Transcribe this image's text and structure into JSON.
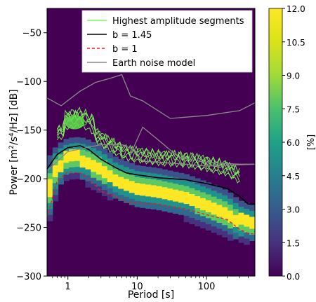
{
  "chart_data": {
    "type": "heatmap",
    "xlabel": "Period [s]",
    "xscale": "log",
    "xlim": [
      0.5,
      500
    ],
    "x_ticks": [
      {
        "value": 1,
        "label": "1"
      },
      {
        "value": 10,
        "label": "10"
      },
      {
        "value": 100,
        "label": "100"
      }
    ],
    "ylabel_parts": {
      "pre": "Power [m",
      "sup1": "2",
      "mid": "/s",
      "sup2": "4",
      "post": "/Hz] [dB]"
    },
    "ylim": [
      -300,
      -25
    ],
    "y_ticks": [
      -50,
      -100,
      -150,
      -200,
      -250,
      -300
    ],
    "y_tick_labels": [
      "−50",
      "−100",
      "−150",
      "−200",
      "−250",
      "−300"
    ],
    "colorbar": {
      "label": "[%]",
      "range": [
        0,
        12
      ],
      "ticks": [
        "0.0",
        "1.5",
        "3.0",
        "4.5",
        "6.0",
        "7.5",
        "9.0",
        "10.5",
        "12.0"
      ],
      "colormap": "viridis"
    },
    "legend": {
      "position": "top-right",
      "entries": [
        {
          "label": "Highest amplitude segments",
          "color": "#7cfc5a",
          "style": "solid"
        },
        {
          "label": "b = 1.45",
          "color": "#000000",
          "style": "solid"
        },
        {
          "label": "b = 1",
          "color": "#e8201c",
          "style": "dashed"
        },
        {
          "label": "Earth noise model",
          "color": "#888888",
          "style": "solid"
        }
      ]
    },
    "density_band": {
      "period": [
        0.5,
        0.7,
        1.0,
        1.5,
        2.0,
        3.0,
        5.0,
        10,
        20,
        50,
        100,
        200,
        300,
        500
      ],
      "upper": [
        -180,
        -165,
        -158,
        -157,
        -160,
        -166,
        -178,
        -186,
        -189,
        -195,
        -203,
        -212,
        -222,
        -228
      ],
      "lower": [
        -255,
        -208,
        -198,
        -198,
        -203,
        -212,
        -220,
        -227,
        -230,
        -238,
        -248,
        -258,
        -262,
        -264
      ]
    },
    "series": [
      {
        "name": "b = 1.45",
        "x": [
          0.5,
          0.7,
          1.0,
          1.5,
          2.0,
          3.0,
          5.0,
          7.0,
          10,
          20,
          50,
          100,
          200,
          300,
          400,
          500
        ],
        "y": [
          -190,
          -175,
          -168,
          -166,
          -170,
          -180,
          -189,
          -194,
          -196,
          -199,
          -201,
          -205,
          -210,
          -218,
          -226,
          -226
        ]
      },
      {
        "name": "b = 1",
        "x": [
          0.5,
          0.7,
          1.0,
          1.5,
          2.0,
          3.0,
          5.0,
          7.0,
          10,
          20,
          50,
          100,
          200,
          300,
          400,
          500
        ],
        "y": [
          -240,
          -202,
          -193,
          -194,
          -200,
          -213,
          -219,
          -224,
          -225,
          -226,
          -231,
          -237,
          -242,
          -252,
          -256,
          -257
        ]
      },
      {
        "name": "Earth noise model",
        "x": [
          0.5,
          0.8,
          1.5,
          2.5,
          4.0,
          6.0,
          8.0,
          12,
          30,
          100,
          300,
          500
        ],
        "y": [
          -117,
          -125,
          -110,
          -101,
          -97,
          -93,
          -115,
          -120,
          -138,
          -135,
          -130,
          -122
        ]
      },
      {
        "name": "Earth noise model",
        "x": [
          0.5,
          1.0,
          3.0,
          6.0,
          9.0,
          12,
          20,
          50,
          100,
          500
        ],
        "y": [
          -192,
          -172,
          -165,
          -165,
          -170,
          -182,
          -183,
          -185,
          -187,
          -185
        ]
      },
      {
        "name": "Earth noise model",
        "x": [
          8.0,
          12,
          20,
          40,
          80,
          150,
          300,
          500
        ],
        "y": [
          -175,
          -147,
          -160,
          -178,
          -182,
          -184,
          -185,
          -185
        ]
      }
    ]
  }
}
